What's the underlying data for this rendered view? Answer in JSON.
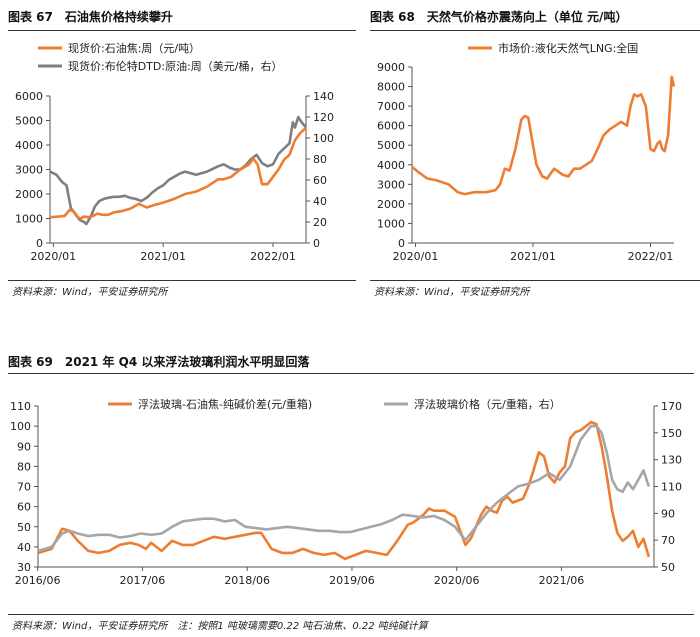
{
  "colors": {
    "orange": "#ED7D31",
    "gray": "#7F7F7F",
    "lightgray": "#A6A6A6"
  },
  "source": {
    "c67": "资料来源：Wind，平安证券研究所",
    "c68": "资料来源：Wind，平安证券研究所",
    "c69": "资料来源：Wind，平安证券研究所　注：按照1 吨玻璃需要0.22 吨石油焦、0.22 吨纯碱计算"
  },
  "chart_data": [
    {
      "id": "c67",
      "type": "line",
      "title": "图表 67　石油焦价格持续攀升",
      "x_ticks": [
        "2020/01",
        "2021/01",
        "2022/01"
      ],
      "x_range": [
        2019.97,
        2022.3
      ],
      "ylim": [
        0,
        6000
      ],
      "y_ticks": [
        0,
        1000,
        2000,
        3000,
        4000,
        5000,
        6000
      ],
      "y2lim": [
        0,
        140
      ],
      "y2_ticks": [
        0,
        20,
        40,
        60,
        80,
        100,
        120,
        140
      ],
      "legend_position": "top-left",
      "series": [
        {
          "name": "现货价:石油焦:周（元/吨）",
          "color": "orange",
          "axis": "left",
          "x": [
            2019.97,
            2020.05,
            2020.1,
            2020.15,
            2020.18,
            2020.22,
            2020.25,
            2020.28,
            2020.32,
            2020.36,
            2020.4,
            2020.45,
            2020.5,
            2020.55,
            2020.62,
            2020.7,
            2020.78,
            2020.85,
            2020.92,
            2021.0,
            2021.1,
            2021.2,
            2021.3,
            2021.4,
            2021.5,
            2021.55,
            2021.62,
            2021.7,
            2021.78,
            2021.82,
            2021.86,
            2021.9,
            2021.95,
            2022.0,
            2022.05,
            2022.1,
            2022.15,
            2022.2,
            2022.25,
            2022.3
          ],
          "values": [
            1050,
            1080,
            1100,
            1350,
            1300,
            1050,
            1000,
            1080,
            1050,
            1100,
            1200,
            1150,
            1150,
            1250,
            1300,
            1400,
            1600,
            1450,
            1550,
            1650,
            1800,
            2000,
            2100,
            2300,
            2600,
            2600,
            2700,
            3000,
            3200,
            3450,
            3200,
            2400,
            2400,
            2700,
            3000,
            3400,
            3600,
            4200,
            4500,
            4700
          ]
        },
        {
          "name": "现货价:布伦特DTD:原油:周（美元/桶，右）",
          "color": "gray",
          "axis": "right",
          "x": [
            2019.97,
            2020.03,
            2020.08,
            2020.12,
            2020.16,
            2020.2,
            2020.24,
            2020.28,
            2020.3,
            2020.34,
            2020.38,
            2020.42,
            2020.46,
            2020.5,
            2020.55,
            2020.6,
            2020.65,
            2020.7,
            2020.75,
            2020.8,
            2020.85,
            2020.9,
            2020.95,
            2021.0,
            2021.05,
            2021.1,
            2021.15,
            2021.2,
            2021.3,
            2021.4,
            2021.5,
            2021.55,
            2021.6,
            2021.65,
            2021.7,
            2021.75,
            2021.8,
            2021.85,
            2021.9,
            2021.95,
            2022.0,
            2022.05,
            2022.1,
            2022.15,
            2022.18,
            2022.2,
            2022.23,
            2022.26,
            2022.3
          ],
          "values": [
            68,
            65,
            58,
            55,
            33,
            28,
            22,
            20,
            18,
            25,
            35,
            40,
            42,
            43,
            44,
            44,
            45,
            43,
            42,
            40,
            43,
            48,
            52,
            55,
            60,
            63,
            66,
            68,
            65,
            68,
            73,
            75,
            72,
            70,
            70,
            74,
            80,
            84,
            76,
            73,
            75,
            85,
            90,
            95,
            115,
            110,
            120,
            115,
            110
          ]
        }
      ]
    },
    {
      "id": "c68",
      "type": "line",
      "title": "图表 68　天然气价格亦震荡向上（单位 元/吨）",
      "x_ticks": [
        "2020/01",
        "2021/01",
        "2022/01"
      ],
      "x_range": [
        2019.97,
        2022.2
      ],
      "ylim": [
        0,
        9000
      ],
      "y_ticks": [
        0,
        1000,
        2000,
        3000,
        4000,
        5000,
        6000,
        7000,
        8000,
        9000
      ],
      "legend_position": "top-left",
      "series": [
        {
          "name": "市场价:液化天然气LNG:全国",
          "color": "orange",
          "axis": "left",
          "x": [
            2019.97,
            2020.03,
            2020.1,
            2020.18,
            2020.28,
            2020.36,
            2020.42,
            2020.5,
            2020.6,
            2020.68,
            2020.72,
            2020.76,
            2020.8,
            2020.85,
            2020.9,
            2020.93,
            2020.96,
            2021.0,
            2021.03,
            2021.08,
            2021.12,
            2021.18,
            2021.25,
            2021.3,
            2021.35,
            2021.4,
            2021.45,
            2021.5,
            2021.55,
            2021.6,
            2021.65,
            2021.7,
            2021.75,
            2021.8,
            2021.83,
            2021.86,
            2021.89,
            2021.92,
            2021.96,
            2022.0,
            2022.03,
            2022.06,
            2022.08,
            2022.1,
            2022.12,
            2022.15,
            2022.18,
            2022.2
          ],
          "values": [
            3900,
            3600,
            3300,
            3200,
            3000,
            2600,
            2500,
            2600,
            2600,
            2700,
            3000,
            3800,
            3700,
            4800,
            6300,
            6500,
            6400,
            5000,
            4000,
            3400,
            3300,
            3800,
            3500,
            3400,
            3800,
            3800,
            4000,
            4200,
            4800,
            5500,
            5800,
            6000,
            6200,
            6000,
            7000,
            7600,
            7500,
            7600,
            7000,
            4800,
            4700,
            5100,
            5200,
            4800,
            4700,
            5500,
            8500,
            8000
          ]
        }
      ]
    },
    {
      "id": "c69",
      "type": "line",
      "title": "图表 69　2021 年 Q4 以来浮法玻璃利润水平明显回落",
      "x_ticks": [
        "2016/06",
        "2017/06",
        "2018/06",
        "2019/06",
        "2020/06",
        "2021/06"
      ],
      "x_range": [
        2016.42,
        2022.3
      ],
      "ylim": [
        30,
        110
      ],
      "y_ticks": [
        30,
        40,
        50,
        60,
        70,
        80,
        90,
        100,
        110
      ],
      "y2lim": [
        50,
        170
      ],
      "y2_ticks": [
        50,
        70,
        90,
        110,
        130,
        150,
        170
      ],
      "legend_position": "top",
      "series": [
        {
          "name": "浮法玻璃-石油焦-纯碱价差(元/重箱)",
          "color": "orange",
          "axis": "left",
          "x": [
            2016.42,
            2016.55,
            2016.65,
            2016.72,
            2016.8,
            2016.9,
            2017.0,
            2017.1,
            2017.2,
            2017.3,
            2017.38,
            2017.45,
            2017.5,
            2017.6,
            2017.7,
            2017.8,
            2017.9,
            2018.0,
            2018.1,
            2018.2,
            2018.3,
            2018.4,
            2018.5,
            2018.55,
            2018.65,
            2018.75,
            2018.85,
            2018.95,
            2019.05,
            2019.15,
            2019.25,
            2019.35,
            2019.45,
            2019.55,
            2019.65,
            2019.75,
            2019.85,
            2019.95,
            2020.0,
            2020.05,
            2020.1,
            2020.15,
            2020.2,
            2020.3,
            2020.4,
            2020.5,
            2020.55,
            2020.6,
            2020.65,
            2020.7,
            2020.75,
            2020.8,
            2020.85,
            2020.9,
            2020.95,
            2021.0,
            2021.05,
            2021.1,
            2021.15,
            2021.2,
            2021.25,
            2021.3,
            2021.35,
            2021.4,
            2021.45,
            2021.5,
            2021.55,
            2021.6,
            2021.65,
            2021.7,
            2021.75,
            2021.8,
            2021.85,
            2021.9,
            2021.95,
            2022.0,
            2022.05,
            2022.1,
            2022.15,
            2022.2,
            2022.25
          ],
          "values": [
            37,
            39,
            49,
            48,
            43,
            38,
            37,
            38,
            41,
            42,
            41,
            39,
            42,
            38,
            43,
            41,
            41,
            43,
            45,
            44,
            45,
            46,
            47,
            47,
            39,
            37,
            37,
            39,
            37,
            36,
            37,
            34,
            36,
            38,
            37,
            36,
            43,
            51,
            52,
            54,
            56,
            59,
            58,
            58,
            55,
            41,
            44,
            50,
            56,
            60,
            58,
            57,
            63,
            65,
            62,
            63,
            64,
            70,
            78,
            87,
            85,
            75,
            72,
            77,
            80,
            94,
            97,
            98,
            100,
            102,
            101,
            90,
            75,
            58,
            47,
            43,
            45,
            48,
            40,
            44,
            35
          ]
        },
        {
          "name": "浮法玻璃价格（元/重箱，右）",
          "color": "lightgray",
          "axis": "right",
          "x": [
            2016.42,
            2016.55,
            2016.65,
            2016.72,
            2016.8,
            2016.9,
            2017.0,
            2017.1,
            2017.2,
            2017.3,
            2017.4,
            2017.5,
            2017.6,
            2017.7,
            2017.8,
            2017.9,
            2018.0,
            2018.1,
            2018.2,
            2018.3,
            2018.4,
            2018.5,
            2018.6,
            2018.7,
            2018.8,
            2018.9,
            2019.0,
            2019.1,
            2019.2,
            2019.3,
            2019.4,
            2019.5,
            2019.6,
            2019.7,
            2019.8,
            2019.9,
            2020.0,
            2020.1,
            2020.2,
            2020.3,
            2020.4,
            2020.5,
            2020.55,
            2020.6,
            2020.7,
            2020.8,
            2020.9,
            2021.0,
            2021.1,
            2021.2,
            2021.3,
            2021.4,
            2021.5,
            2021.55,
            2021.6,
            2021.65,
            2021.7,
            2021.75,
            2021.8,
            2021.85,
            2021.9,
            2021.95,
            2022.0,
            2022.05,
            2022.1,
            2022.15,
            2022.2,
            2022.25
          ],
          "values": [
            62,
            65,
            75,
            77,
            75,
            73,
            74,
            74,
            72,
            73,
            75,
            74,
            75,
            80,
            84,
            85,
            86,
            86,
            84,
            85,
            80,
            79,
            78,
            79,
            80,
            79,
            78,
            77,
            77,
            76,
            76,
            78,
            80,
            82,
            85,
            89,
            88,
            87,
            88,
            85,
            80,
            70,
            75,
            80,
            90,
            98,
            104,
            110,
            112,
            115,
            120,
            115,
            125,
            135,
            145,
            150,
            155,
            155,
            150,
            135,
            115,
            108,
            106,
            113,
            108,
            115,
            122,
            110
          ]
        }
      ]
    }
  ]
}
